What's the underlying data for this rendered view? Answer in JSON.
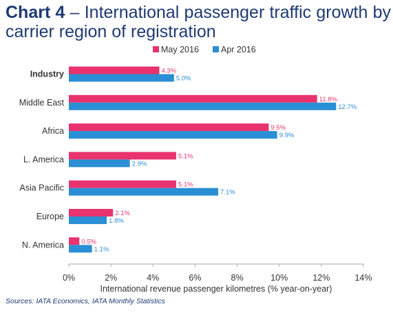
{
  "title": {
    "number": "Chart 4",
    "text": "– International passenger traffic growth by carrier region of registration"
  },
  "source": "Sources: IATA Economics, IATA Monthly Statistics",
  "colors": {
    "may": "#e8336f",
    "apr": "#2a8fd4",
    "axis_text": "#333333",
    "title": "#1f3a73"
  },
  "chart_data": {
    "type": "bar",
    "orientation": "horizontal",
    "categories": [
      "Industry",
      "Middle East",
      "Africa",
      "L. America",
      "Asia Pacific",
      "Europe",
      "N. America"
    ],
    "series": [
      {
        "name": "May 2016",
        "values": [
          4.3,
          11.8,
          9.5,
          5.1,
          5.1,
          2.1,
          0.5
        ],
        "labels": [
          "4.3%",
          "11.8%",
          "9.5%",
          "5.1%",
          "5.1%",
          "2.1%",
          "0.5%"
        ]
      },
      {
        "name": "Apr 2016",
        "values": [
          5.0,
          12.7,
          9.9,
          2.9,
          7.1,
          1.8,
          1.1
        ],
        "labels": [
          "5.0%",
          "12.7%",
          "9.9%",
          "2.9%",
          "7.1%",
          "1.8%",
          "1.1%"
        ]
      }
    ],
    "xlabel": "International revenue passenger kilometres (% year-on-year)",
    "xlim": [
      0,
      14
    ],
    "xticks": [
      "0%",
      "2%",
      "4%",
      "6%",
      "8%",
      "10%",
      "12%",
      "14%"
    ],
    "bold_category": "Industry",
    "legend": "top-center",
    "grid": false
  }
}
